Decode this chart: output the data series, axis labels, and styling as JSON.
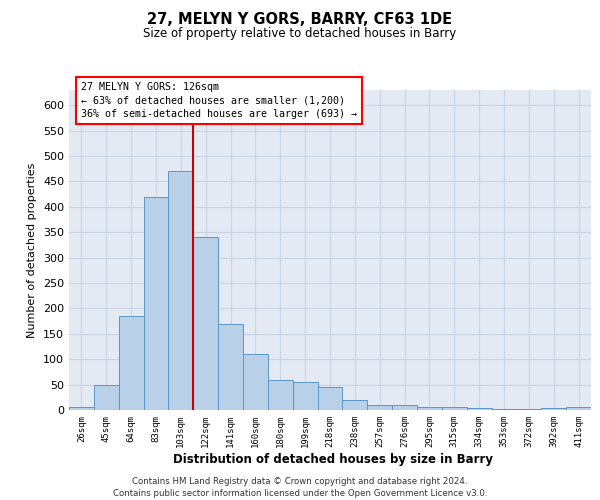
{
  "title": "27, MELYN Y GORS, BARRY, CF63 1DE",
  "subtitle": "Size of property relative to detached houses in Barry",
  "xlabel": "Distribution of detached houses by size in Barry",
  "ylabel": "Number of detached properties",
  "footer_line1": "Contains HM Land Registry data © Crown copyright and database right 2024.",
  "footer_line2": "Contains public sector information licensed under the Open Government Licence v3.0.",
  "annotation_line1": "27 MELYN Y GORS: 126sqm",
  "annotation_line2": "← 63% of detached houses are smaller (1,200)",
  "annotation_line3": "36% of semi-detached houses are larger (693) →",
  "bar_color": "#b8d0e8",
  "bar_edge_color": "#5a96c8",
  "vline_color": "#cc0000",
  "vline_x_idx": 4,
  "categories": [
    "26sqm",
    "45sqm",
    "64sqm",
    "83sqm",
    "103sqm",
    "122sqm",
    "141sqm",
    "160sqm",
    "180sqm",
    "199sqm",
    "218sqm",
    "238sqm",
    "257sqm",
    "276sqm",
    "295sqm",
    "315sqm",
    "334sqm",
    "353sqm",
    "372sqm",
    "392sqm",
    "411sqm"
  ],
  "values": [
    5,
    50,
    185,
    420,
    470,
    340,
    170,
    110,
    60,
    55,
    45,
    20,
    10,
    10,
    5,
    5,
    3,
    2,
    2,
    3,
    5
  ],
  "ylim": [
    0,
    630
  ],
  "yticks": [
    0,
    50,
    100,
    150,
    200,
    250,
    300,
    350,
    400,
    450,
    500,
    550,
    600
  ],
  "grid_color": "#c8d4e4",
  "background_color": "#e4eaf4"
}
